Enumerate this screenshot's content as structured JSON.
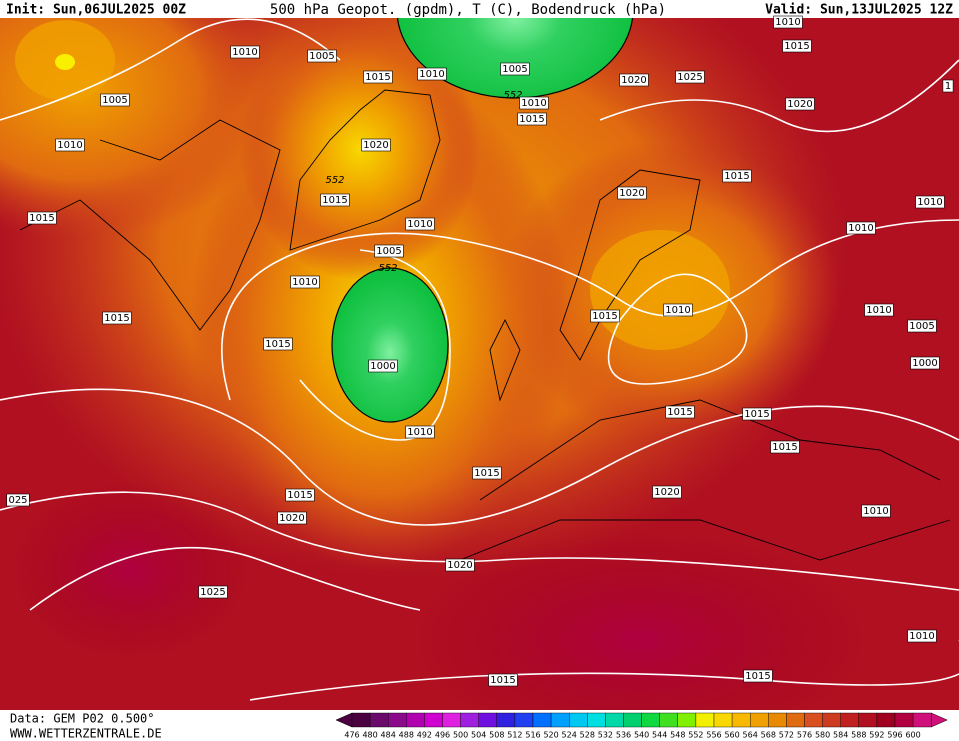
{
  "header": {
    "init": "Init: Sun,06JUL2025 00Z",
    "title": "500 hPa Geopot. (gpdm), T (C), Bodendruck (hPa)",
    "valid": "Valid: Sun,13JUL2025 12Z"
  },
  "footer": {
    "data": "Data: GEM P02 0.500°",
    "site": "WWW.WETTERZENTRALE.DE"
  },
  "isobar_labels": [
    "1010",
    "1005",
    "1015",
    "1010",
    "1005",
    "1020",
    "1025",
    "1010",
    "1015",
    "1020",
    "1005",
    "1010",
    "1020",
    "552",
    "1015",
    "552",
    "1010",
    "1015",
    "1015",
    "1020",
    "1010",
    "1015",
    "1010",
    "1010",
    "1005",
    "552",
    "1010",
    "1015",
    "1015",
    "1010",
    "1010",
    "1005",
    "1015",
    "1000",
    "1000",
    "1010",
    "1015",
    "1015",
    "1015",
    "1015",
    "1015",
    "1020",
    "025",
    "1010",
    "1020",
    "1020",
    "1025",
    "1010",
    "1015",
    "1015",
    "1"
  ],
  "colorbar": {
    "levels": [
      476,
      480,
      484,
      488,
      492,
      496,
      500,
      504,
      508,
      512,
      516,
      520,
      524,
      528,
      532,
      536,
      540,
      544,
      548,
      552,
      556,
      560,
      564,
      568,
      572,
      576,
      580,
      584,
      588,
      592,
      596,
      600
    ],
    "colors": [
      "#4b0040",
      "#6a0a6a",
      "#8a0a8a",
      "#b000b0",
      "#d000d0",
      "#e020e0",
      "#a020e0",
      "#7010e0",
      "#3020e0",
      "#2040f0",
      "#0070ff",
      "#00a0ff",
      "#00c8f0",
      "#00e0e0",
      "#00d8a8",
      "#00d070",
      "#10d840",
      "#40e020",
      "#80f000",
      "#f0f000",
      "#f8d800",
      "#f8b800",
      "#f0a000",
      "#e88a00",
      "#e06a10",
      "#d85020",
      "#cc3a20",
      "#c02020",
      "#b01020",
      "#a00020",
      "#b00040",
      "#d0107a"
    ]
  }
}
